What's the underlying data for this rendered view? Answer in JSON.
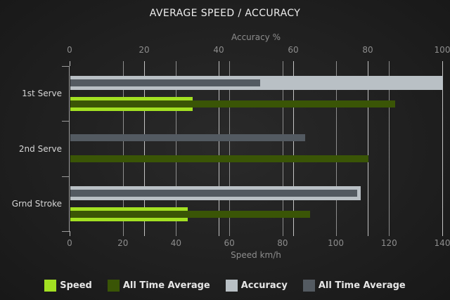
{
  "title": "AVERAGE SPEED / ACCURACY",
  "axes": {
    "top": {
      "label": "Accuracy %"
    },
    "bottom": {
      "label": "Speed km/h"
    }
  },
  "legend": {
    "items": [
      {
        "label": "Speed",
        "color": "#a2e022"
      },
      {
        "label": "All Time Average",
        "color": "#3a5506"
      },
      {
        "label": "Accuracy",
        "color": "#b9c0c5"
      },
      {
        "label": "All Time Average",
        "color": "#535a61"
      }
    ]
  },
  "colors": {
    "background_center": "#2a2a2a",
    "background_edge": "#181818",
    "title_text": "#ededed",
    "axis_text": "#8d8d8d",
    "tick_text": "#8d8d8d",
    "category_text": "#d6d6d6",
    "legend_text": "#e6e6e6",
    "grid_accuracy": "#c4c4c4",
    "grid_speed": "#8e8e8e",
    "axis_line": "#9a9a9a",
    "speed_bar": "#a2e022",
    "speed_avg_bar": "#3a5506",
    "accuracy_bar": "#b9c0c5",
    "accuracy_avg_bar": "#535a61"
  },
  "chart_data": {
    "type": "bar",
    "orientation": "horizontal",
    "title": "AVERAGE SPEED / ACCURACY",
    "categories": [
      "1st Serve",
      "2nd Serve",
      "Grnd Stroke"
    ],
    "top_axis": {
      "label": "Accuracy %",
      "min": 0,
      "max": 100,
      "ticks": [
        0,
        20,
        40,
        60,
        80,
        100
      ]
    },
    "bottom_axis": {
      "label": "Speed km/h",
      "min": 0,
      "max": 140,
      "ticks": [
        0,
        20,
        40,
        60,
        80,
        100,
        120,
        140
      ]
    },
    "series": [
      {
        "name": "Speed",
        "axis": "bottom",
        "color": "#a2e022",
        "values": [
          46,
          0,
          44
        ]
      },
      {
        "name": "All Time Average",
        "axis": "bottom",
        "color": "#3a5506",
        "values": [
          122,
          112,
          90
        ]
      },
      {
        "name": "Accuracy",
        "axis": "top",
        "color": "#b9c0c5",
        "values": [
          100,
          0,
          78
        ]
      },
      {
        "name": "All Time Average",
        "axis": "top",
        "color": "#535a61",
        "values": [
          51,
          63,
          77
        ]
      }
    ],
    "grid": true,
    "legend_position": "bottom"
  }
}
